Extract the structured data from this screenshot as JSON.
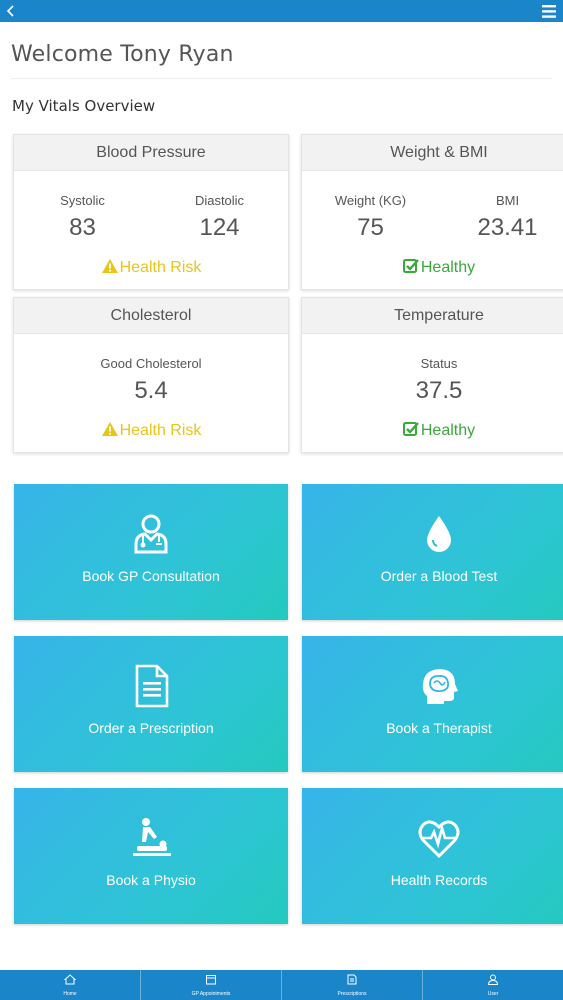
{
  "header": {
    "back_icon": "chevron-left-icon",
    "menu_icon": "hamburger-menu-icon"
  },
  "welcome": "Welcome Tony Ryan",
  "section_title": "My Vitals Overview",
  "vitals": {
    "blood_pressure": {
      "title": "Blood Pressure",
      "systolic_label": "Systolic",
      "systolic_value": "83",
      "diastolic_label": "Diastolic",
      "diastolic_value": "124",
      "status": "Health Risk"
    },
    "weight_bmi": {
      "title": "Weight & BMI",
      "weight_label": "Weight (KG)",
      "weight_value": "75",
      "bmi_label": "BMI",
      "bmi_value": "23.41",
      "status": "Healthy"
    },
    "cholesterol": {
      "title": "Cholesterol",
      "label": "Good Cholesterol",
      "value": "5.4",
      "status": "Health Risk"
    },
    "temperature": {
      "title": "Temperature",
      "label": "Status",
      "value": "37.5",
      "status": "Healthy"
    }
  },
  "colors": {
    "primary": "#1a86c9",
    "risk": "#e9c41a",
    "healthy": "#3aa93a",
    "tile_start": "#37b4e8",
    "tile_end": "#24c9be"
  },
  "tiles": [
    {
      "label": "Book GP Consultation",
      "icon": "doctor-icon"
    },
    {
      "label": "Order a Blood Test",
      "icon": "blood-drop-icon"
    },
    {
      "label": "Order a Prescription",
      "icon": "document-icon"
    },
    {
      "label": "Book a Therapist",
      "icon": "brain-head-icon"
    },
    {
      "label": "Book a Physio",
      "icon": "massage-icon"
    },
    {
      "label": "Health Records",
      "icon": "heartbeat-icon"
    }
  ],
  "bottom_nav": [
    {
      "label": "Home",
      "icon": "home-icon"
    },
    {
      "label": "GP Appointments",
      "icon": "calendar-icon"
    },
    {
      "label": "Prescriptions",
      "icon": "prescription-icon"
    },
    {
      "label": "User",
      "icon": "user-icon"
    }
  ]
}
